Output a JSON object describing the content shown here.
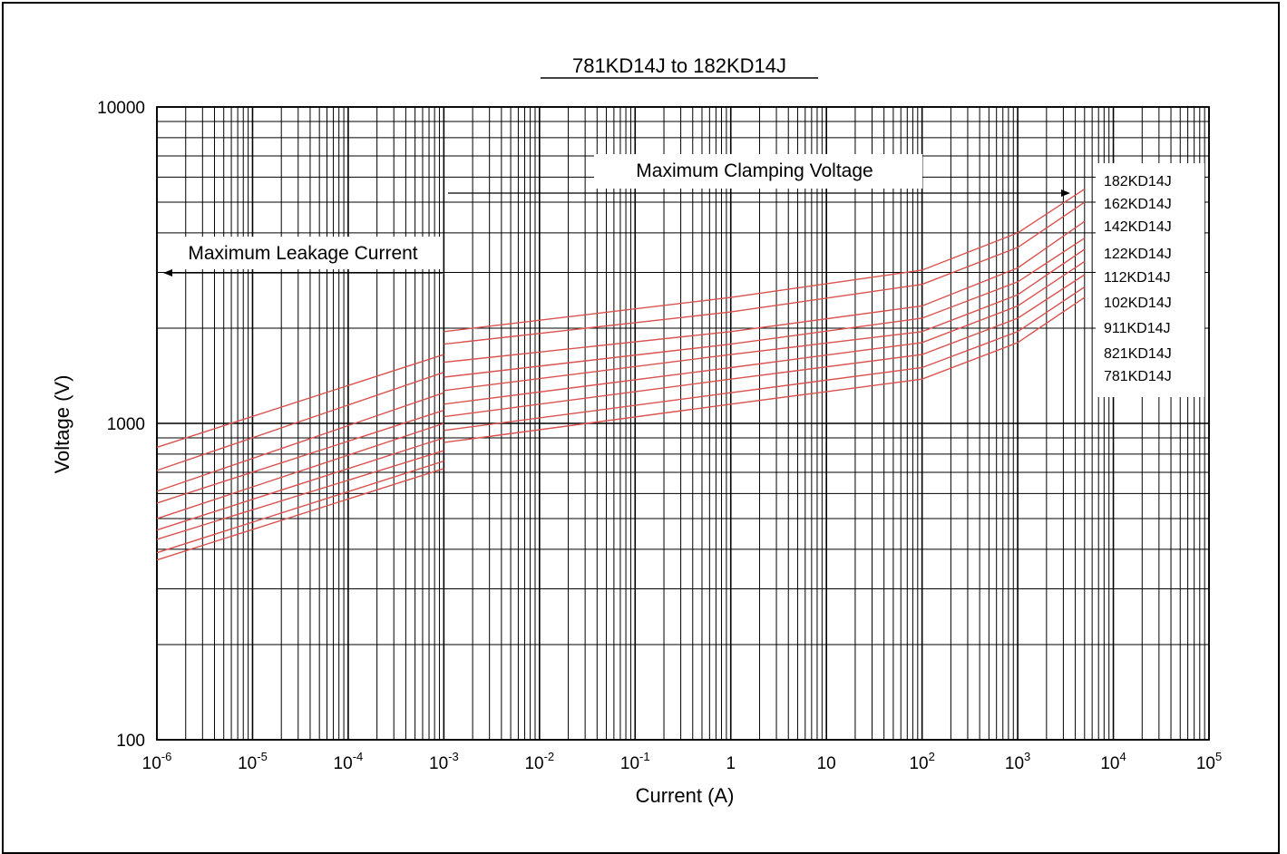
{
  "chart_data": {
    "type": "line",
    "title": "781KD14J to 182KD14J",
    "xlabel": "Current (A)",
    "ylabel": "Voltage (V)",
    "x_scale": "log",
    "y_scale": "log",
    "xlim": [
      1e-06,
      100000
    ],
    "ylim": [
      100,
      10000
    ],
    "grid": true,
    "x_tick_labels": [
      {
        "value": 1e-06,
        "base": "10",
        "exp": "-6"
      },
      {
        "value": 1e-05,
        "base": "10",
        "exp": "-5"
      },
      {
        "value": 0.0001,
        "base": "10",
        "exp": "-4"
      },
      {
        "value": 0.001,
        "base": "10",
        "exp": "-3"
      },
      {
        "value": 0.01,
        "base": "10",
        "exp": "-2"
      },
      {
        "value": 0.1,
        "base": "10",
        "exp": "-1"
      },
      {
        "value": 1,
        "base": "1",
        "exp": ""
      },
      {
        "value": 10,
        "base": "10",
        "exp": ""
      },
      {
        "value": 100,
        "base": "10",
        "exp": "2"
      },
      {
        "value": 1000,
        "base": "10",
        "exp": "3"
      },
      {
        "value": 10000,
        "base": "10",
        "exp": "4"
      },
      {
        "value": 100000,
        "base": "10",
        "exp": "5"
      }
    ],
    "y_tick_labels": [
      {
        "value": 10000,
        "text": "10000"
      },
      {
        "value": 1000,
        "text": "1000"
      },
      {
        "value": 100,
        "text": "100"
      }
    ],
    "annotations": {
      "clamping": "Maximum Clamping Voltage",
      "leakage": "Maximum Leakage Current"
    },
    "legend_placement": "right",
    "series": [
      {
        "name": "182KD14J",
        "leakage": [
          [
            1e-06,
            840
          ],
          [
            0.001,
            1650
          ]
        ],
        "clamping": [
          [
            0.001,
            1950
          ],
          [
            1,
            2500
          ],
          [
            100,
            3050
          ],
          [
            1000,
            4000
          ],
          [
            5000,
            5500
          ]
        ]
      },
      {
        "name": "162KD14J",
        "leakage": [
          [
            1e-06,
            710
          ],
          [
            0.001,
            1450
          ]
        ],
        "clamping": [
          [
            0.001,
            1780
          ],
          [
            1,
            2250
          ],
          [
            100,
            2750
          ],
          [
            1000,
            3600
          ],
          [
            5000,
            5000
          ]
        ]
      },
      {
        "name": "142KD14J",
        "leakage": [
          [
            1e-06,
            610
          ],
          [
            0.001,
            1250
          ]
        ],
        "clamping": [
          [
            0.001,
            1560
          ],
          [
            1,
            1950
          ],
          [
            100,
            2350
          ],
          [
            1000,
            3100
          ],
          [
            5000,
            4350
          ]
        ]
      },
      {
        "name": "122KD14J",
        "leakage": [
          [
            1e-06,
            560
          ],
          [
            0.001,
            1100
          ]
        ],
        "clamping": [
          [
            0.001,
            1400
          ],
          [
            1,
            1780
          ],
          [
            100,
            2150
          ],
          [
            1000,
            2800
          ],
          [
            5000,
            3850
          ]
        ]
      },
      {
        "name": "112KD14J",
        "leakage": [
          [
            1e-06,
            500
          ],
          [
            0.001,
            1000
          ]
        ],
        "clamping": [
          [
            0.001,
            1270
          ],
          [
            1,
            1650
          ],
          [
            100,
            1950
          ],
          [
            1000,
            2550
          ],
          [
            5000,
            3550
          ]
        ]
      },
      {
        "name": "102KD14J",
        "leakage": [
          [
            1e-06,
            460
          ],
          [
            0.001,
            900
          ]
        ],
        "clamping": [
          [
            0.001,
            1150
          ],
          [
            1,
            1500
          ],
          [
            100,
            1800
          ],
          [
            1000,
            2350
          ],
          [
            5000,
            3250
          ]
        ]
      },
      {
        "name": "911KD14J",
        "leakage": [
          [
            1e-06,
            430
          ],
          [
            0.001,
            820
          ]
        ],
        "clamping": [
          [
            0.001,
            1050
          ],
          [
            1,
            1380
          ],
          [
            100,
            1650
          ],
          [
            1000,
            2150
          ],
          [
            5000,
            2950
          ]
        ]
      },
      {
        "name": "821KD14J",
        "leakage": [
          [
            1e-06,
            390
          ],
          [
            0.001,
            760
          ]
        ],
        "clamping": [
          [
            0.001,
            950
          ],
          [
            1,
            1250
          ],
          [
            100,
            1500
          ],
          [
            1000,
            1950
          ],
          [
            5000,
            2700
          ]
        ]
      },
      {
        "name": "781KD14J",
        "leakage": [
          [
            1e-06,
            370
          ],
          [
            0.001,
            720
          ]
        ],
        "clamping": [
          [
            0.001,
            870
          ],
          [
            1,
            1150
          ],
          [
            100,
            1380
          ],
          [
            1000,
            1800
          ],
          [
            5000,
            2500
          ]
        ]
      }
    ]
  }
}
